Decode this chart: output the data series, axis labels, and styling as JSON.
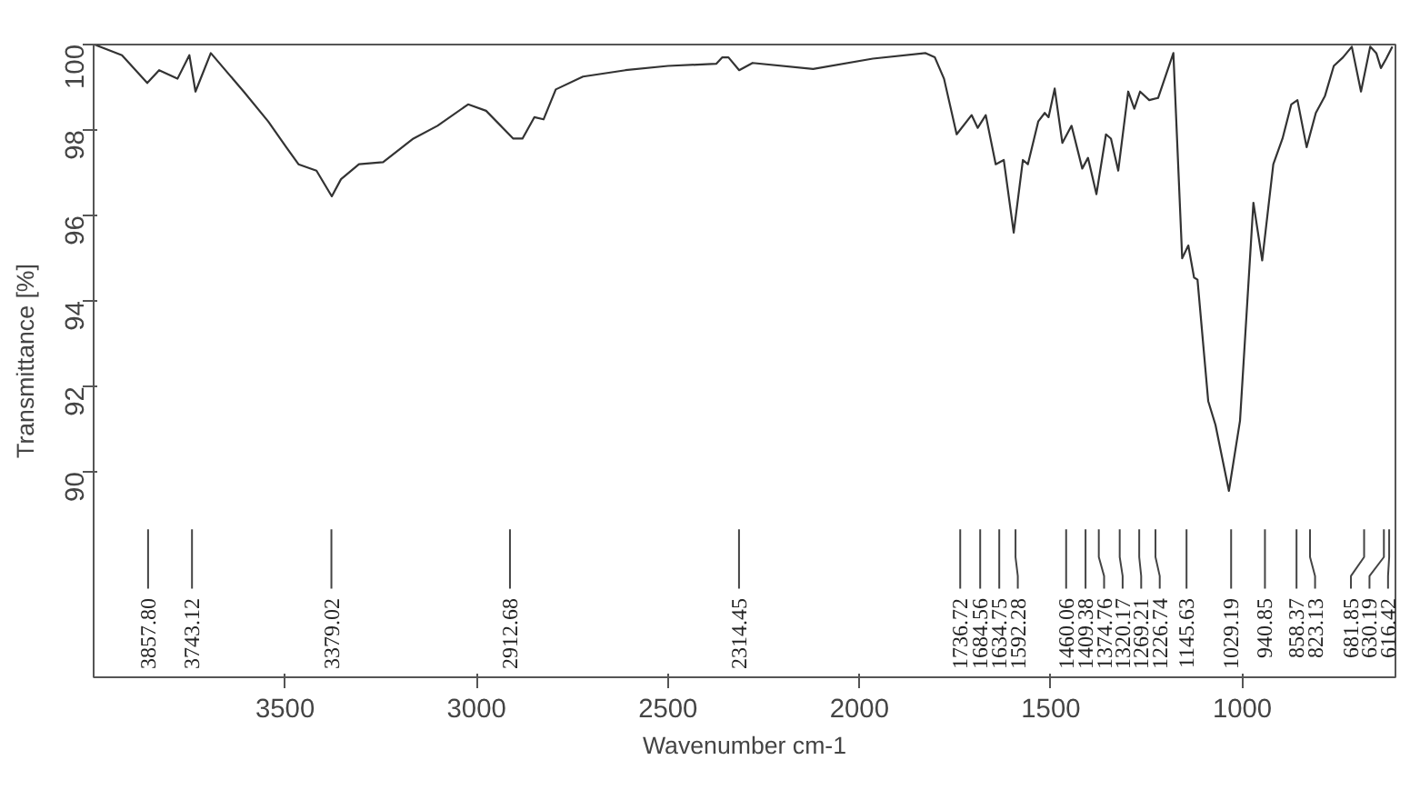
{
  "chart_data": {
    "type": "line",
    "xlabel": "Wavenumber cm-1",
    "ylabel": "Transmittance [%]",
    "xlim": [
      4000,
      600
    ],
    "ylim": [
      85.2,
      100
    ],
    "xticks": [
      3500,
      3000,
      2500,
      2000,
      1500,
      1000
    ],
    "yticks": [
      90,
      92,
      94,
      96,
      98,
      100
    ],
    "grid": false,
    "series": [
      {
        "color": "#333333",
        "x": [
          3998,
          3926,
          3860,
          3829,
          3781,
          3750,
          3734,
          3694,
          3608,
          3544,
          3497,
          3465,
          3418,
          3378,
          3354,
          3307,
          3244,
          3165,
          3102,
          3022,
          2975,
          2904,
          2880,
          2849,
          2825,
          2793,
          2722,
          2611,
          2500,
          2374,
          2358,
          2342,
          2314,
          2279,
          2121,
          1965,
          1827,
          1803,
          1779,
          1746,
          1707,
          1691,
          1670,
          1644,
          1623,
          1597,
          1573,
          1560,
          1533,
          1516,
          1506,
          1490,
          1470,
          1446,
          1418,
          1403,
          1381,
          1356,
          1343,
          1324,
          1298,
          1282,
          1267,
          1243,
          1220,
          1180,
          1157,
          1141,
          1126,
          1117,
          1089,
          1070,
          1035,
          1006,
          971,
          948,
          919,
          895,
          872,
          856,
          832,
          808,
          784,
          761,
          737,
          714,
          690,
          666,
          650,
          638,
          624,
          608
        ],
        "values": [
          100,
          99.75,
          99.1,
          99.4,
          99.2,
          99.75,
          98.9,
          99.8,
          98.9,
          98.2,
          97.6,
          97.2,
          97.05,
          96.45,
          96.85,
          97.2,
          97.25,
          97.8,
          98.1,
          98.6,
          98.45,
          97.8,
          97.8,
          98.3,
          98.25,
          98.95,
          99.25,
          99.4,
          99.5,
          99.55,
          99.7,
          99.7,
          99.4,
          99.57,
          99.43,
          99.67,
          99.8,
          99.7,
          99.2,
          97.9,
          98.35,
          98.05,
          98.35,
          97.2,
          97.3,
          95.6,
          97.3,
          97.2,
          98.2,
          98.4,
          98.3,
          98.97,
          97.7,
          98.1,
          97.1,
          97.35,
          96.5,
          97.9,
          97.8,
          97.05,
          98.9,
          98.5,
          98.9,
          98.7,
          98.75,
          99.8,
          95.0,
          95.3,
          94.55,
          94.5,
          91.66,
          91.1,
          89.56,
          91.2,
          96.3,
          94.95,
          97.2,
          97.8,
          98.6,
          98.7,
          97.6,
          98.4,
          98.8,
          99.5,
          99.7,
          99.95,
          98.9,
          99.95,
          99.8,
          99.45,
          99.67,
          99.95
        ]
      }
    ],
    "annotations": [
      {
        "text": "3857.80",
        "x": 3857.8
      },
      {
        "text": "3743.12",
        "x": 3743.12
      },
      {
        "text": "3379.02",
        "x": 3379.02
      },
      {
        "text": "2912.68",
        "x": 2912.68
      },
      {
        "text": "2314.45",
        "x": 2314.45
      },
      {
        "text": "1736.72",
        "x": 1736.72
      },
      {
        "text": "1684.56",
        "x": 1684.56
      },
      {
        "text": "1634.75",
        "x": 1634.75
      },
      {
        "text": "1592.28",
        "x": 1592.28
      },
      {
        "text": "1460.06",
        "x": 1460.06
      },
      {
        "text": "1409.38",
        "x": 1409.38
      },
      {
        "text": "1374.76",
        "x": 1374.76
      },
      {
        "text": "1320.17",
        "x": 1320.17
      },
      {
        "text": "1269.21",
        "x": 1269.21
      },
      {
        "text": "1226.74",
        "x": 1226.74
      },
      {
        "text": "1145.63",
        "x": 1145.63
      },
      {
        "text": "1029.19",
        "x": 1029.19
      },
      {
        "text": "940.85",
        "x": 940.85
      },
      {
        "text": "858.37",
        "x": 858.37
      },
      {
        "text": "823.13",
        "x": 823.13
      },
      {
        "text": "681.85",
        "x": 681.85
      },
      {
        "text": "630.19",
        "x": 630.19
      },
      {
        "text": "616.42",
        "x": 616.42
      }
    ]
  }
}
